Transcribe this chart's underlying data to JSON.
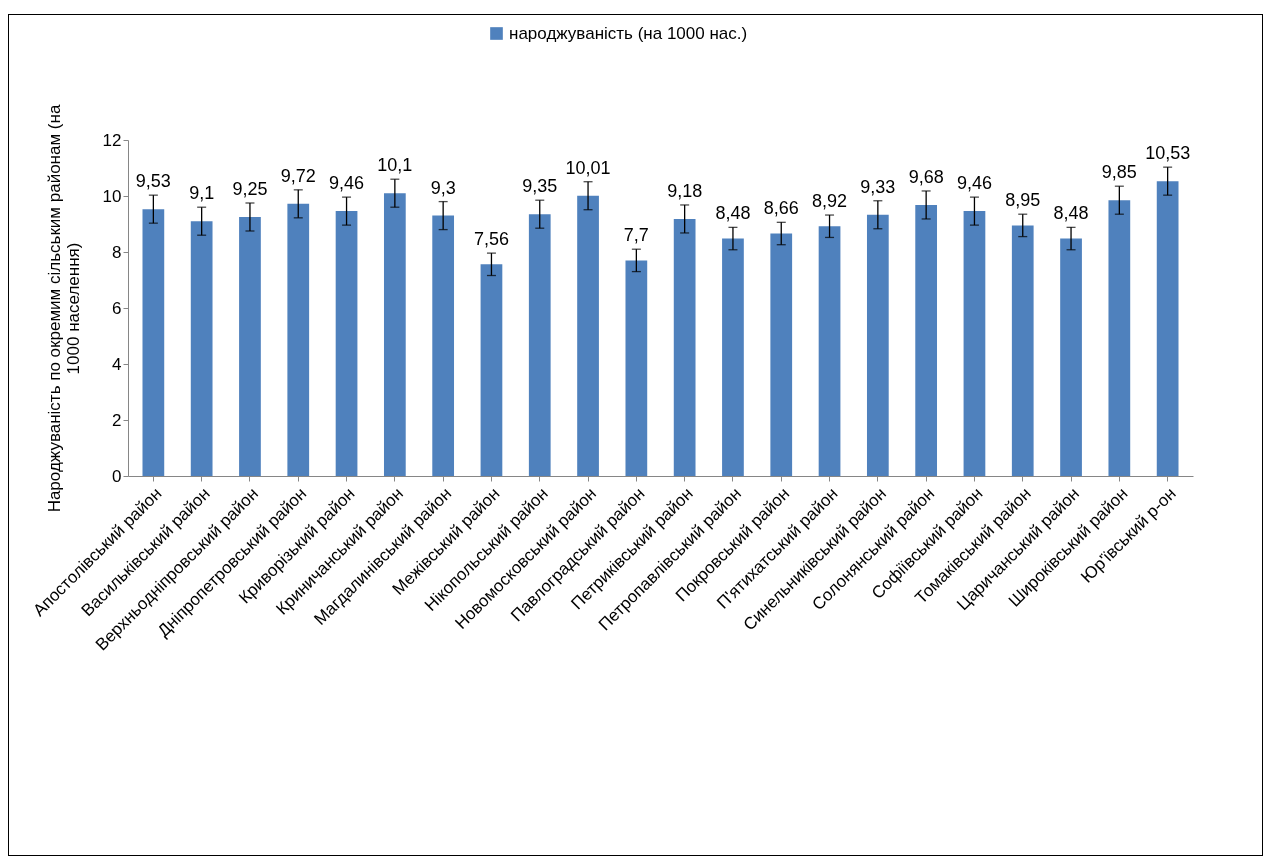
{
  "chart_data": {
    "type": "bar",
    "ylabel": "Народжуваність по окремим сільським районам (на 1000 населення)",
    "categories": [
      "Апостолівський район",
      "Васильківський район",
      "Верхньодніпровський район",
      "Дніпропетровський район",
      "Криворізький район",
      "Криничанський район",
      "Магдалинівський район",
      "Межівський район",
      "Нікопольський район",
      "Новомосковський район",
      "Павлоградський район",
      "Петриківський район",
      "Петропавлівський район",
      "Покровський район",
      "П'ятихатський район",
      "Синельниківський район",
      "Солонянський район",
      "Софіївський район",
      "Томаківський район",
      "Царичанський район",
      "Широківський район",
      "Юр'ївський р-он"
    ],
    "series": [
      {
        "name": "народжуваність (на 1000 нас.)",
        "color": "#4f81bd",
        "values": [
          9.53,
          9.1,
          9.25,
          9.72,
          9.46,
          10.1,
          9.3,
          7.56,
          9.35,
          10.01,
          7.7,
          9.18,
          8.48,
          8.66,
          8.92,
          9.33,
          9.68,
          9.46,
          8.95,
          8.48,
          9.85,
          10.53
        ],
        "errors": [
          0.5,
          0.5,
          0.5,
          0.5,
          0.5,
          0.5,
          0.5,
          0.4,
          0.5,
          0.5,
          0.4,
          0.5,
          0.4,
          0.4,
          0.4,
          0.5,
          0.5,
          0.5,
          0.4,
          0.4,
          0.5,
          0.5
        ],
        "value_labels": [
          "9,53",
          "9,1",
          "9,25",
          "9,72",
          "9,46",
          "10,1",
          "9,3",
          "7,56",
          "9,35",
          "10,01",
          "7,7",
          "9,18",
          "8,48",
          "8,66",
          "8,92",
          "9,33",
          "9,68",
          "9,46",
          "8,95",
          "8,48",
          "9,85",
          "10,53"
        ]
      }
    ],
    "ylim": [
      0,
      12
    ],
    "yticks": [
      0,
      2,
      4,
      6,
      8,
      10,
      12
    ],
    "grid": false,
    "legend": "top"
  }
}
